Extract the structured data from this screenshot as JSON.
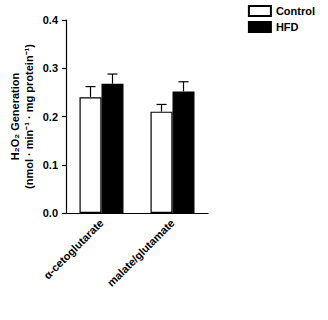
{
  "chart_data": {
    "type": "bar",
    "ylabel": "H₂O₂ Generation\n(nmol · min⁻¹ · mg protein⁻¹)",
    "categories": [
      "α-cetoglutarate",
      "malate/glutamate"
    ],
    "series": [
      {
        "name": "Control",
        "color": "#ffffff",
        "values": [
          0.24,
          0.21
        ],
        "errors": [
          0.022,
          0.015
        ]
      },
      {
        "name": "HFD",
        "color": "#000000",
        "values": [
          0.268,
          0.252
        ],
        "errors": [
          0.02,
          0.02
        ]
      }
    ],
    "ylim": [
      0,
      0.4
    ],
    "yticks": [
      {
        "value": 0,
        "label": "0.0"
      },
      {
        "value": 0.1,
        "label": "0.1"
      },
      {
        "value": 0.2,
        "label": "0.2"
      },
      {
        "value": 0.3,
        "label": "0.3"
      },
      {
        "value": 0.4,
        "label": "0.4"
      }
    ],
    "grid": false,
    "legend": "top-right"
  }
}
